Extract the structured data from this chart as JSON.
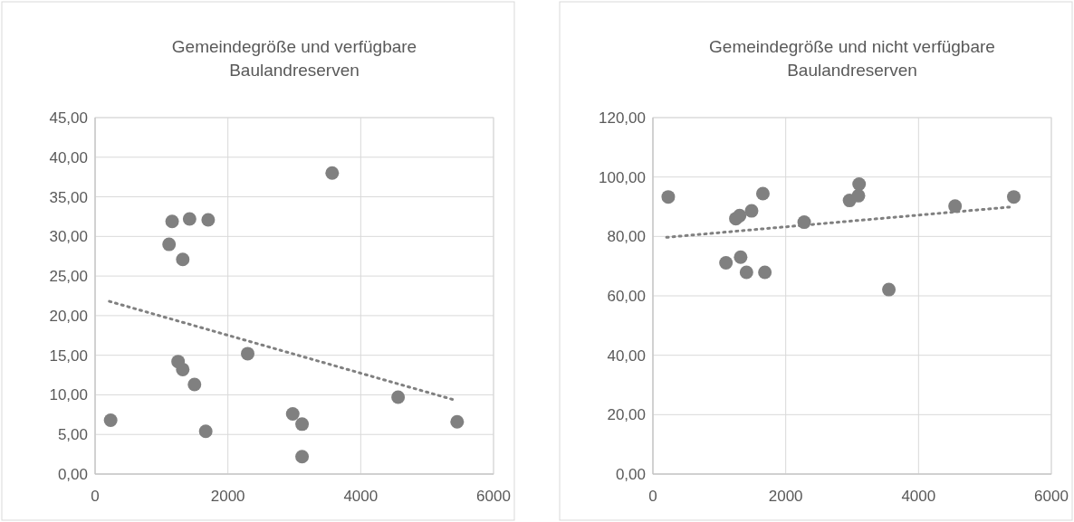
{
  "chart_data": [
    {
      "type": "scatter",
      "title": "Gemeindegröße und verfügbare Baulandreserven",
      "grid": true,
      "marker": "circle",
      "xlim": [
        0,
        6000
      ],
      "xticks": [
        0,
        2000,
        4000,
        6000
      ],
      "ylim": [
        0,
        45
      ],
      "yticks": [
        {
          "value": 0,
          "label": "0,00"
        },
        {
          "value": 5,
          "label": "5,00"
        },
        {
          "value": 10,
          "label": "10,00"
        },
        {
          "value": 15,
          "label": "15,00"
        },
        {
          "value": 20,
          "label": "20,00"
        },
        {
          "value": 25,
          "label": "25,00"
        },
        {
          "value": 30,
          "label": "30,00"
        },
        {
          "value": 35,
          "label": "35,00"
        },
        {
          "value": 40,
          "label": "40,00"
        },
        {
          "value": 45,
          "label": "45,00"
        }
      ],
      "series": [
        {
          "color": "#808080",
          "x": [
            234,
            1160,
            1423,
            1703,
            1114,
            1320,
            3570,
            1250,
            1320,
            1497,
            1666,
            2298,
            2976,
            3117,
            3117,
            4563,
            5452
          ],
          "values": [
            6.8,
            31.9,
            32.2,
            32.1,
            29.0,
            27.1,
            38.0,
            14.2,
            13.2,
            11.3,
            5.4,
            15.2,
            7.6,
            6.3,
            2.2,
            9.7,
            6.6
          ]
        },
        {
          "type": "line",
          "color": "#808080",
          "line_style": "dotted",
          "marker": "none",
          "x": [
            215,
            5391
          ],
          "values": [
            21.8,
            9.4
          ]
        }
      ]
    },
    {
      "type": "scatter",
      "title": "Gemeindegröße und nicht verfügbare Baulandreserven",
      "grid": true,
      "marker": "circle",
      "xlim": [
        0,
        6000
      ],
      "xticks": [
        0,
        2000,
        4000,
        6000
      ],
      "ylim": [
        0,
        120
      ],
      "yticks": [
        {
          "value": 0,
          "label": "0,00"
        },
        {
          "value": 20,
          "label": "20,00"
        },
        {
          "value": 40,
          "label": "40,00"
        },
        {
          "value": 60,
          "label": "60,00"
        },
        {
          "value": 80,
          "label": "80,00"
        },
        {
          "value": 100,
          "label": "100,00"
        },
        {
          "value": 120,
          "label": "120,00"
        }
      ],
      "series": [
        {
          "color": "#808080",
          "x": [
            231,
            1249,
            1306,
            1486,
            1656,
            2278,
            2961,
            3105,
            3095,
            4550,
            5434,
            1100,
            1321,
            1409,
            1686,
            3553
          ],
          "values": [
            93.3,
            86.0,
            87.0,
            88.6,
            94.4,
            84.8,
            92.1,
            97.6,
            93.7,
            90.2,
            93.3,
            71.1,
            73.0,
            67.9,
            67.9,
            62.1
          ]
        },
        {
          "type": "line",
          "color": "#808080",
          "line_style": "dotted",
          "marker": "none",
          "x": [
            206,
            5434
          ],
          "values": [
            79.7,
            90.0
          ]
        }
      ]
    }
  ]
}
